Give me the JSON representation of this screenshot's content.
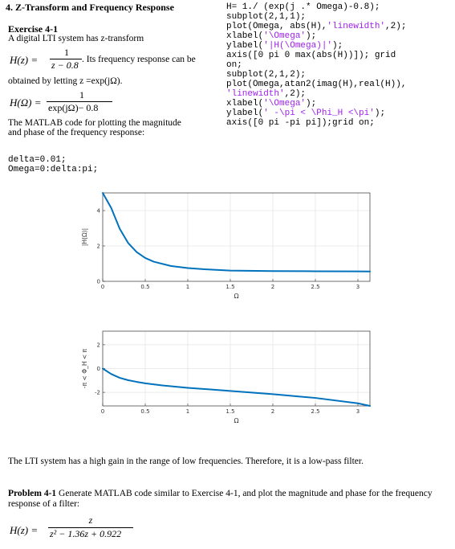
{
  "section_title": "4. Z-Transform and Frequency Response",
  "exercise": {
    "heading": "Exercise 4-1",
    "intro": "A digital LTI system has z-transform",
    "hz_lhs": "H(z) =",
    "hz_num": "1",
    "hz_den": "z − 0.8",
    "freq_text": ". Its frequency response can be",
    "obtained": "obtained by letting z =exp(jΩ).",
    "homega_lhs": "H(Ω) =",
    "homega_num": "1",
    "homega_den": "exp(jΩ)− 0.8",
    "matlab_text_1": "The MATLAB code for plotting the magnitude",
    "matlab_text_2": "and phase of the frequency response:"
  },
  "code_left": {
    "line1": "delta=0.01;",
    "line2": "Omega=0:delta:pi;"
  },
  "code_right": {
    "line1": "H= 1./ (exp(j .* Omega)-0.8);",
    "line2": "subplot(2,1,1);",
    "line3_a": "plot(Omega, abs(H),",
    "line3_b": "'linewidth'",
    "line3_c": ",2);",
    "line4_a": "xlabel(",
    "line4_b": "'\\Omega'",
    "line4_c": ");",
    "line5_a": "ylabel(",
    "line5_b": "'|H(\\Omega)|'",
    "line5_c": ");",
    "line6_a": "axis([0 pi 0 max(abs(H))]); grid",
    "line6_b": "on;",
    "line7": "subplot(2,1,2);",
    "line8": "plot(Omega,atan2(imag(H),real(H)),",
    "line9_a": "'linewidth'",
    "line9_b": ",2);",
    "line10_a": "xlabel(",
    "line10_b": "'\\Omega'",
    "line10_c": ");",
    "line11_a": "ylabel(",
    "line11_b": "' -\\pi < \\Phi_H <\\pi'",
    "line11_c": ");",
    "line12_a": "axis([0 pi -pi pi]);grid ",
    "line12_b": "on;"
  },
  "chart_data": [
    {
      "type": "line",
      "xlabel": "Ω",
      "ylabel": "|H(Ω)|",
      "xlim": [
        0,
        3.14159
      ],
      "ylim": [
        0,
        5
      ],
      "xticks": [
        "0",
        "0.5",
        "1",
        "1.5",
        "2",
        "2.5",
        "3"
      ],
      "yticks": [
        "0",
        "2",
        "4"
      ],
      "grid": true,
      "color": "#0072bd",
      "series": [
        {
          "values_x": [
            0,
            0.1,
            0.2,
            0.3,
            0.4,
            0.5,
            0.6,
            0.8,
            1.0,
            1.2,
            1.5,
            2.0,
            2.5,
            3.0,
            3.14159
          ],
          "values_y": [
            5.0,
            4.15,
            2.97,
            2.16,
            1.65,
            1.32,
            1.11,
            0.87,
            0.75,
            0.68,
            0.61,
            0.58,
            0.57,
            0.56,
            0.556
          ]
        }
      ]
    },
    {
      "type": "line",
      "xlabel": "Ω",
      "ylabel": "-π < Φ_H < π",
      "xlim": [
        0,
        3.14159
      ],
      "ylim": [
        -3.14159,
        3.14159
      ],
      "xticks": [
        "0",
        "0.5",
        "1",
        "1.5",
        "2",
        "2.5",
        "3"
      ],
      "yticks": [
        "-2",
        "0",
        "2"
      ],
      "grid": true,
      "color": "#0072bd",
      "series": [
        {
          "values_x": [
            0,
            0.1,
            0.2,
            0.3,
            0.4,
            0.5,
            0.7,
            1.0,
            1.5,
            2.0,
            2.5,
            3.0,
            3.14159
          ],
          "values_y": [
            0,
            -0.46,
            -0.78,
            -0.98,
            -1.12,
            -1.24,
            -1.42,
            -1.62,
            -1.88,
            -2.15,
            -2.47,
            -2.92,
            -3.14
          ]
        }
      ]
    }
  ],
  "conclusion": "The LTI system has a high gain in the range of low frequencies. Therefore, it is a low-pass filter.",
  "problem": {
    "heading": "Problem 4-1",
    "text_1": " Generate MATLAB code similar to Exercise 4-1, and plot the magnitude and phase for the frequency",
    "text_2": "response of a filter:",
    "hz_lhs": "H(z) =",
    "hz_num": "z",
    "hz_den": "z² − 1.36z + 0.922"
  }
}
